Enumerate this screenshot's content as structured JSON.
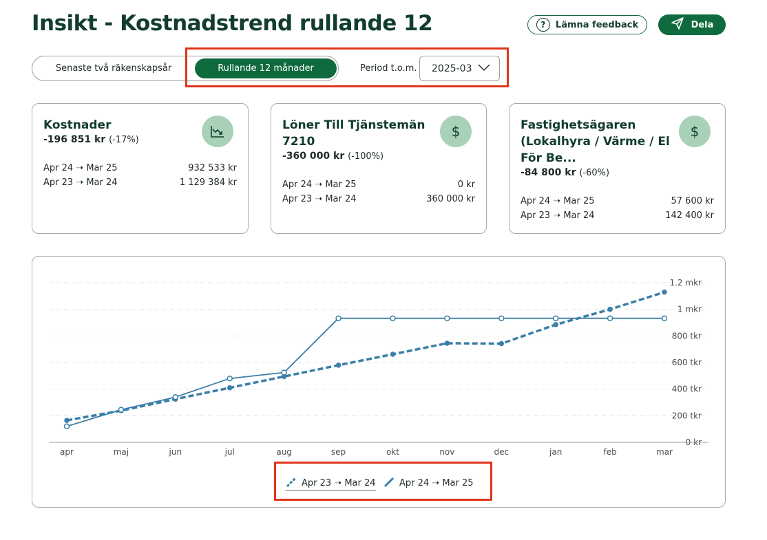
{
  "header": {
    "title": "Insikt - Kostnadstrend rullande 12",
    "feedback_label": "Lämna feedback",
    "share_label": "Dela"
  },
  "controls": {
    "segment_options": [
      "Senaste två räkenskapsår",
      "Rullande 12 månader"
    ],
    "segment_selected": "Rullande 12 månader",
    "period_label": "Period t.o.m.",
    "period_value": "2025-03"
  },
  "cards": [
    {
      "title": "Kostnader",
      "amount": "-196 851 kr",
      "pct": "(-17%)",
      "icon": "trend-down-icon",
      "rows": [
        {
          "label": "Apr 24 ➝ Mar 25",
          "value": "932 533 kr"
        },
        {
          "label": "Apr 23 ➝ Mar 24",
          "value": "1 129 384 kr"
        }
      ]
    },
    {
      "title": "Löner Till Tjänstemän 7210",
      "amount": "-360 000 kr",
      "pct": "(-100%)",
      "icon": "dollar-icon",
      "rows": [
        {
          "label": "Apr 24 ➝ Mar 25",
          "value": "0 kr"
        },
        {
          "label": "Apr 23 ➝ Mar 24",
          "value": "360 000 kr"
        }
      ]
    },
    {
      "title": "Fastighetsägaren (Lokalhyra / Värme / El För Be...",
      "amount": "-84 800 kr",
      "pct": "(-60%)",
      "icon": "dollar-icon",
      "rows": [
        {
          "label": "Apr 24 ➝ Mar 25",
          "value": "57 600 kr"
        },
        {
          "label": "Apr 23 ➝ Mar 24",
          "value": "142 400 kr"
        }
      ]
    }
  ],
  "chart_data": {
    "type": "line",
    "categories": [
      "apr",
      "maj",
      "jun",
      "jul",
      "aug",
      "sep",
      "okt",
      "nov",
      "dec",
      "jan",
      "feb",
      "mar"
    ],
    "y_ticks": [
      {
        "value": 0,
        "label": "0 kr"
      },
      {
        "value": 200000,
        "label": "200 tkr"
      },
      {
        "value": 400000,
        "label": "400 tkr"
      },
      {
        "value": 600000,
        "label": "600 tkr"
      },
      {
        "value": 800000,
        "label": "800 tkr"
      },
      {
        "value": 1000000,
        "label": "1 mkr"
      },
      {
        "value": 1200000,
        "label": "1.2 mkr"
      }
    ],
    "ylim": [
      0,
      1200000
    ],
    "grid": true,
    "legend_position": "bottom-center",
    "series": [
      {
        "name": "Apr 23 ➝ Mar 24",
        "style": "dashed",
        "color": "#3a7fa8",
        "values": [
          165000,
          238000,
          325000,
          410000,
          495000,
          580000,
          662000,
          745000,
          742000,
          885000,
          1000000,
          1129384
        ]
      },
      {
        "name": "Apr 24 ➝ Mar 25",
        "style": "solid",
        "color": "#3a7fa8",
        "values": [
          120000,
          245000,
          340000,
          480000,
          525000,
          932533,
          932533,
          932533,
          932533,
          932533,
          932533,
          932533
        ]
      }
    ]
  }
}
